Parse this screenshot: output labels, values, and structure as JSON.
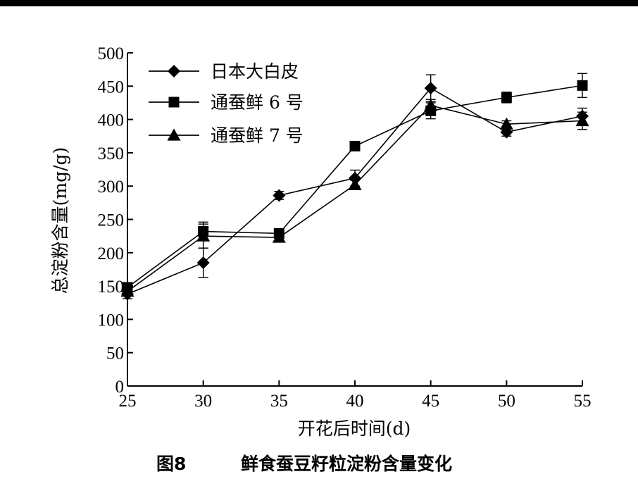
{
  "chart_data": {
    "type": "line",
    "caption_number": "图8",
    "caption_title": "鲜食蚕豆籽粒淀粉含量变化",
    "xlabel": "开花后时间(d)",
    "ylabel": "总淀粉含量(mg/g)",
    "x": [
      25,
      30,
      35,
      40,
      45,
      50,
      55
    ],
    "xlim": [
      25,
      55
    ],
    "ylim": [
      0,
      500
    ],
    "xticks": [
      "25",
      "30",
      "35",
      "40",
      "45",
      "50",
      "55"
    ],
    "yticks": [
      "0",
      "50",
      "100",
      "150",
      "200",
      "250",
      "300",
      "350",
      "400",
      "450",
      "500"
    ],
    "grid": false,
    "legend_position": "top-left",
    "series": [
      {
        "name": "日本大白皮",
        "marker": "diamond",
        "values": [
          138,
          185,
          286,
          312,
          447,
          381,
          405
        ],
        "errors": [
          7,
          22,
          6,
          12,
          20,
          6,
          12
        ]
      },
      {
        "name": "通蚕鲜 6 号",
        "marker": "square",
        "values": [
          148,
          232,
          229,
          360,
          413,
          433,
          451
        ],
        "errors": [
          7,
          14,
          6,
          4,
          12,
          8,
          18
        ]
      },
      {
        "name": "通蚕鲜 7 号",
        "marker": "triangle",
        "values": [
          142,
          225,
          223,
          302,
          421,
          393,
          398
        ],
        "errors": [
          6,
          18,
          6,
          7,
          9,
          5,
          13
        ]
      }
    ]
  }
}
